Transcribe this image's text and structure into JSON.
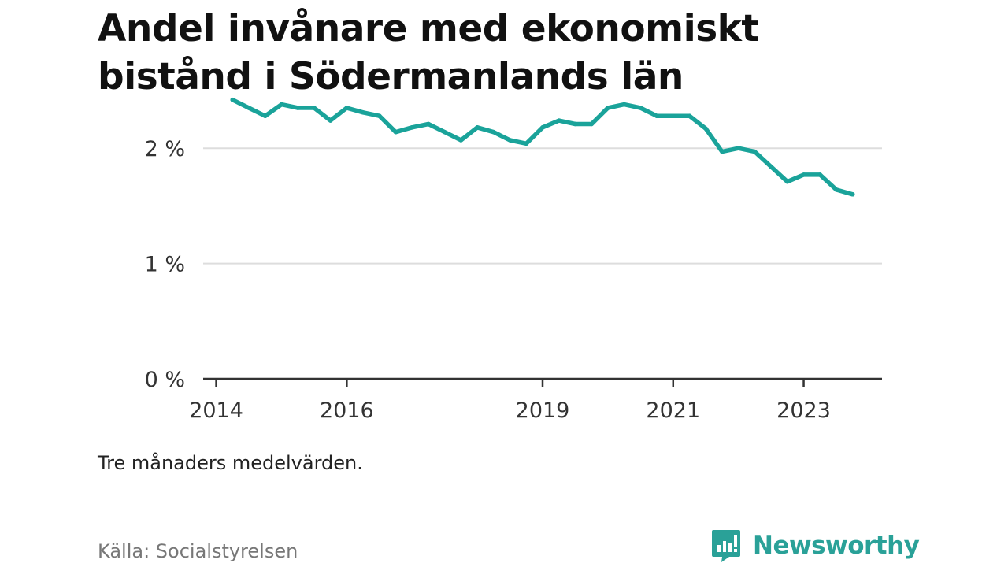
{
  "title": "Andel invånare med ekonomiskt bistånd i Södermanlands län",
  "note": "Tre månaders medelvärden.",
  "source": "Källa: Socialstyrelsen",
  "brand": {
    "name": "Newsworthy",
    "icon": "newsworthy-logo-icon",
    "color": "#2aa198"
  },
  "colors": {
    "line": "#1aa39a",
    "grid": "#dddddd",
    "axis": "#333333"
  },
  "chart_data": {
    "type": "line",
    "title": "Andel invånare med ekonomiskt bistånd i Södermanlands län",
    "xlabel": "",
    "ylabel": "",
    "ylim": [
      0,
      2.5
    ],
    "x_ticks": [
      2014,
      2016,
      2019,
      2021,
      2023
    ],
    "y_ticks": [
      {
        "value": 0,
        "label": "0 %"
      },
      {
        "value": 1,
        "label": "1 %"
      },
      {
        "value": 2,
        "label": "2 %"
      }
    ],
    "grid": "horizontal",
    "series": [
      {
        "x": [
          2014.25,
          2014.5,
          2014.75,
          2015.0,
          2015.25,
          2015.5,
          2015.75,
          2016.0,
          2016.25,
          2016.5,
          2016.75,
          2017.0,
          2017.25,
          2017.5,
          2017.75,
          2018.0,
          2018.25,
          2018.5,
          2018.75,
          2019.0,
          2019.25,
          2019.5,
          2019.75,
          2020.0,
          2020.25,
          2020.5,
          2020.75,
          2021.0,
          2021.25,
          2021.5,
          2021.75,
          2022.0,
          2022.25,
          2022.5,
          2022.75,
          2023.0,
          2023.25,
          2023.5,
          2023.75
        ],
        "values": [
          2.42,
          2.35,
          2.28,
          2.38,
          2.35,
          2.35,
          2.24,
          2.35,
          2.31,
          2.28,
          2.14,
          2.18,
          2.21,
          2.14,
          2.07,
          2.18,
          2.14,
          2.07,
          2.04,
          2.18,
          2.24,
          2.21,
          2.21,
          2.35,
          2.38,
          2.35,
          2.28,
          2.28,
          2.28,
          2.17,
          1.97,
          2.0,
          1.97,
          1.84,
          1.71,
          1.77,
          1.77,
          1.64,
          1.6
        ]
      }
    ]
  }
}
